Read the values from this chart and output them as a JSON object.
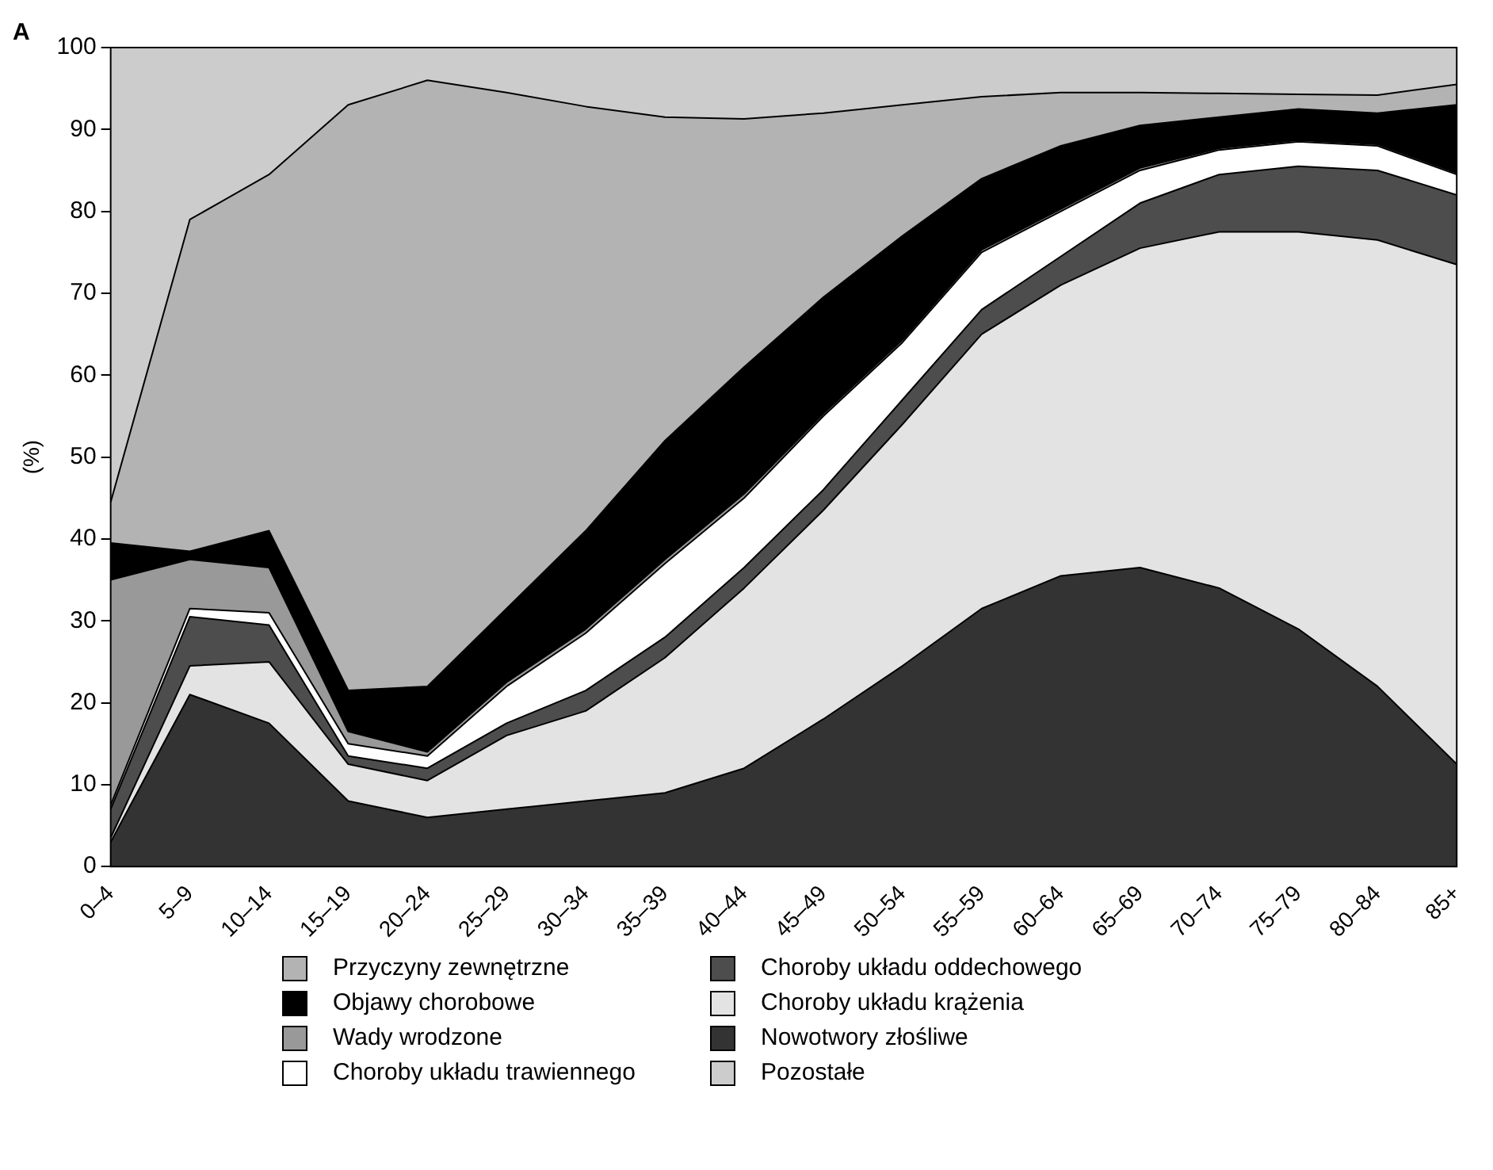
{
  "chart_data": {
    "type": "area",
    "title": "A",
    "ylabel": "(%)",
    "stacked": true,
    "legend": "bottom",
    "grid": false,
    "categories": [
      "0–4",
      "5–9",
      "10–14",
      "15–19",
      "20–24",
      "25–29",
      "30–34",
      "35–39",
      "40–44",
      "45–49",
      "50–54",
      "55–59",
      "60–64",
      "65–69",
      "70–74",
      "75–79",
      "80–84",
      "85+"
    ],
    "ylim": [
      0,
      100
    ],
    "yticks": [
      0,
      10,
      20,
      30,
      40,
      50,
      60,
      70,
      80,
      90,
      100
    ],
    "series": [
      {
        "name": "Nowotwory złośliwe",
        "color": "#333333",
        "values": [
          3,
          21,
          17.5,
          8,
          6,
          7,
          8,
          9,
          12,
          18,
          24.5,
          31.5,
          35.5,
          36.5,
          34,
          29,
          22,
          12.5
        ]
      },
      {
        "name": "Choroby układu krążenia",
        "color": "#e3e3e3",
        "values": [
          0.5,
          3.5,
          7.5,
          4.5,
          4.5,
          9,
          11,
          16.5,
          22,
          25.5,
          29.5,
          33.5,
          35.5,
          39,
          43.5,
          48.5,
          54.5,
          61
        ]
      },
      {
        "name": "Choroby układu oddechowego",
        "color": "#4d4d4d",
        "values": [
          3.5,
          6,
          4.5,
          1,
          1.5,
          1.5,
          2.5,
          2.5,
          2.5,
          2.5,
          3,
          3,
          3.5,
          5.5,
          7,
          8,
          8.5,
          8.5
        ]
      },
      {
        "name": "Choroby układu trawiennego",
        "color": "#ffffff",
        "values": [
          0.5,
          1,
          1.5,
          1.5,
          1.5,
          4.5,
          7,
          9,
          8.5,
          9,
          7,
          7,
          5.5,
          4,
          3,
          3,
          3,
          2.5
        ]
      },
      {
        "name": "Wady wrodzone",
        "color": "#999999",
        "values": [
          27.5,
          6,
          5.5,
          1.5,
          0.5,
          0.5,
          0.5,
          0.5,
          0.5,
          0.3,
          0.3,
          0.3,
          0.3,
          0.3,
          0.2,
          0.2,
          0.2,
          0.2
        ]
      },
      {
        "name": "Objawy chorobowe",
        "color": "#000000",
        "values": [
          4.5,
          1,
          4.5,
          5,
          8,
          9,
          12,
          14.5,
          15.5,
          14.2,
          12.7,
          8.7,
          7.7,
          5.2,
          3.8,
          3.8,
          3.8,
          8.3
        ]
      },
      {
        "name": "Przyczyny zewnętrzne",
        "color": "#b3b3b3",
        "values": [
          5,
          40.5,
          43.5,
          71.5,
          74,
          63,
          51.8,
          39.5,
          30.3,
          22.5,
          16,
          10,
          6.5,
          4,
          2.9,
          1.8,
          2.2,
          2.5
        ]
      },
      {
        "name": "Pozostałe",
        "color": "#cccccc",
        "values": [
          55.5,
          21,
          15.5,
          7,
          4,
          5.5,
          7.2,
          8.5,
          8.7,
          8,
          7,
          6,
          5.5,
          5.5,
          5.6,
          5.7,
          5.8,
          4.5
        ]
      }
    ]
  }
}
